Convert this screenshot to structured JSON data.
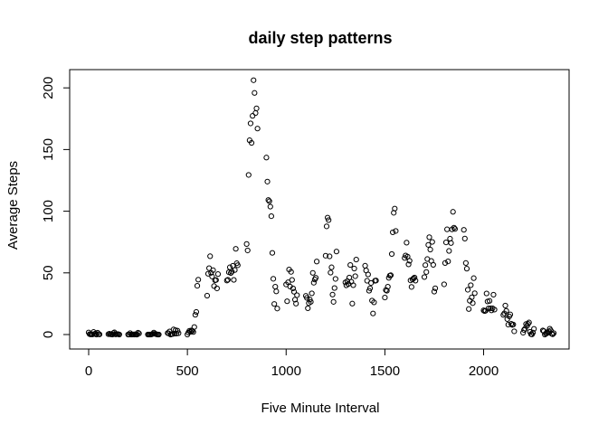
{
  "chart_data": {
    "type": "scatter",
    "title": "daily step patterns",
    "xlabel": "Five Minute Interval",
    "ylabel": "Average Steps",
    "xlim": [
      0,
      2355
    ],
    "ylim": [
      0,
      206
    ],
    "xticks": [
      0,
      500,
      1000,
      1500,
      2000
    ],
    "yticks": [
      0,
      50,
      100,
      150,
      200
    ],
    "grid": false,
    "legend": "none",
    "points": [
      [
        0,
        1.7
      ],
      [
        5,
        0.3
      ],
      [
        10,
        0.1
      ],
      [
        15,
        0.2
      ],
      [
        20,
        0.1
      ],
      [
        25,
        2.1
      ],
      [
        30,
        0.5
      ],
      [
        35,
        0.9
      ],
      [
        40,
        0
      ],
      [
        45,
        1.5
      ],
      [
        50,
        0.3
      ],
      [
        55,
        0.1
      ],
      [
        100,
        0.3
      ],
      [
        105,
        0.7
      ],
      [
        110,
        0.2
      ],
      [
        115,
        0.3
      ],
      [
        120,
        0
      ],
      [
        125,
        1.1
      ],
      [
        130,
        1.8
      ],
      [
        135,
        0.2
      ],
      [
        140,
        0.2
      ],
      [
        145,
        0.4
      ],
      [
        150,
        0.3
      ],
      [
        155,
        0
      ],
      [
        200,
        0
      ],
      [
        205,
        0
      ],
      [
        210,
        1.1
      ],
      [
        215,
        0
      ],
      [
        220,
        0
      ],
      [
        225,
        0.1
      ],
      [
        230,
        0
      ],
      [
        235,
        0.2
      ],
      [
        240,
        0
      ],
      [
        245,
        0
      ],
      [
        250,
        1.5
      ],
      [
        255,
        0.9
      ],
      [
        300,
        0
      ],
      [
        305,
        0
      ],
      [
        310,
        0
      ],
      [
        315,
        0
      ],
      [
        320,
        0.2
      ],
      [
        325,
        0.6
      ],
      [
        330,
        1.6
      ],
      [
        335,
        0.6
      ],
      [
        340,
        0.5
      ],
      [
        345,
        0.1
      ],
      [
        350,
        0
      ],
      [
        355,
        0
      ],
      [
        400,
        1.2
      ],
      [
        405,
        0.9
      ],
      [
        410,
        2.5
      ],
      [
        415,
        0
      ],
      [
        420,
        0.3
      ],
      [
        425,
        0.4
      ],
      [
        430,
        4.1
      ],
      [
        435,
        0.7
      ],
      [
        440,
        3.5
      ],
      [
        445,
        0.8
      ],
      [
        450,
        3.1
      ],
      [
        455,
        1.1
      ],
      [
        500,
        0
      ],
      [
        505,
        1.6
      ],
      [
        510,
        3.0
      ],
      [
        515,
        2.2
      ],
      [
        520,
        3.3
      ],
      [
        525,
        3.0
      ],
      [
        530,
        2.1
      ],
      [
        535,
        6.1
      ],
      [
        540,
        16.0
      ],
      [
        545,
        18.3
      ],
      [
        550,
        39.5
      ],
      [
        555,
        44.5
      ],
      [
        600,
        31.5
      ],
      [
        605,
        49.3
      ],
      [
        610,
        53.8
      ],
      [
        615,
        63.5
      ],
      [
        620,
        50.0
      ],
      [
        625,
        47.1
      ],
      [
        630,
        52.2
      ],
      [
        635,
        39.3
      ],
      [
        640,
        44.0
      ],
      [
        645,
        44.2
      ],
      [
        650,
        37.4
      ],
      [
        655,
        49.0
      ],
      [
        700,
        43.8
      ],
      [
        705,
        44.4
      ],
      [
        710,
        50.5
      ],
      [
        715,
        54.5
      ],
      [
        720,
        49.9
      ],
      [
        725,
        51.0
      ],
      [
        730,
        55.7
      ],
      [
        735,
        44.3
      ],
      [
        740,
        52.3
      ],
      [
        745,
        69.5
      ],
      [
        750,
        57.8
      ],
      [
        755,
        56.2
      ],
      [
        800,
        73.4
      ],
      [
        805,
        68.2
      ],
      [
        810,
        129.4
      ],
      [
        815,
        157.5
      ],
      [
        820,
        171.2
      ],
      [
        825,
        155.4
      ],
      [
        830,
        177.3
      ],
      [
        835,
        206.2
      ],
      [
        840,
        195.9
      ],
      [
        845,
        179.6
      ],
      [
        850,
        183.4
      ],
      [
        855,
        167.0
      ],
      [
        900,
        143.5
      ],
      [
        905,
        124.0
      ],
      [
        910,
        109.1
      ],
      [
        915,
        108.1
      ],
      [
        920,
        103.7
      ],
      [
        925,
        95.97
      ],
      [
        930,
        66.2
      ],
      [
        935,
        45.2
      ],
      [
        940,
        24.8
      ],
      [
        945,
        38.8
      ],
      [
        950,
        34.98
      ],
      [
        955,
        21.1
      ],
      [
        1000,
        40.6
      ],
      [
        1005,
        26.98
      ],
      [
        1010,
        42.4
      ],
      [
        1015,
        52.7
      ],
      [
        1020,
        38.9
      ],
      [
        1025,
        50.8
      ],
      [
        1030,
        44.3
      ],
      [
        1035,
        37.4
      ],
      [
        1040,
        34.7
      ],
      [
        1045,
        28.3
      ],
      [
        1050,
        25.1
      ],
      [
        1055,
        31.9
      ],
      [
        1100,
        31.4
      ],
      [
        1105,
        29.7
      ],
      [
        1110,
        21.3
      ],
      [
        1115,
        25.5
      ],
      [
        1120,
        28.4
      ],
      [
        1125,
        26.5
      ],
      [
        1130,
        33.4
      ],
      [
        1135,
        50.0
      ],
      [
        1140,
        42.0
      ],
      [
        1145,
        44.6
      ],
      [
        1150,
        46.0
      ],
      [
        1155,
        59.2
      ],
      [
        1200,
        63.9
      ],
      [
        1205,
        87.7
      ],
      [
        1210,
        94.8
      ],
      [
        1215,
        92.8
      ],
      [
        1220,
        63.4
      ],
      [
        1225,
        50.2
      ],
      [
        1230,
        54.5
      ],
      [
        1235,
        32.4
      ],
      [
        1240,
        26.5
      ],
      [
        1245,
        37.7
      ],
      [
        1250,
        45.1
      ],
      [
        1255,
        67.3
      ],
      [
        1300,
        42.3
      ],
      [
        1305,
        39.9
      ],
      [
        1310,
        43.3
      ],
      [
        1315,
        41.0
      ],
      [
        1320,
        46.2
      ],
      [
        1325,
        56.4
      ],
      [
        1330,
        42.8
      ],
      [
        1335,
        25.1
      ],
      [
        1340,
        40.0
      ],
      [
        1345,
        53.5
      ],
      [
        1350,
        47.3
      ],
      [
        1355,
        60.8
      ],
      [
        1400,
        55.8
      ],
      [
        1405,
        51.96
      ],
      [
        1410,
        43.6
      ],
      [
        1415,
        48.7
      ],
      [
        1420,
        35.5
      ],
      [
        1425,
        37.5
      ],
      [
        1430,
        41.8
      ],
      [
        1435,
        27.5
      ],
      [
        1440,
        17.1
      ],
      [
        1445,
        26.1
      ],
      [
        1450,
        43.6
      ],
      [
        1455,
        43.8
      ],
      [
        1500,
        30.0
      ],
      [
        1505,
        36.1
      ],
      [
        1510,
        35.5
      ],
      [
        1515,
        38.8
      ],
      [
        1520,
        45.96
      ],
      [
        1525,
        47.8
      ],
      [
        1530,
        48.1
      ],
      [
        1535,
        65.3
      ],
      [
        1540,
        82.9
      ],
      [
        1545,
        98.7
      ],
      [
        1550,
        102.1
      ],
      [
        1555,
        83.96
      ],
      [
        1600,
        62.1
      ],
      [
        1605,
        64.1
      ],
      [
        1610,
        74.5
      ],
      [
        1615,
        63.2
      ],
      [
        1620,
        56.9
      ],
      [
        1625,
        59.8
      ],
      [
        1630,
        43.9
      ],
      [
        1635,
        38.6
      ],
      [
        1640,
        44.7
      ],
      [
        1645,
        45.5
      ],
      [
        1650,
        46.2
      ],
      [
        1655,
        43.7
      ],
      [
        1700,
        46.6
      ],
      [
        1705,
        56.3
      ],
      [
        1710,
        50.7
      ],
      [
        1715,
        61.2
      ],
      [
        1720,
        72.7
      ],
      [
        1725,
        78.9
      ],
      [
        1730,
        68.9
      ],
      [
        1735,
        59.7
      ],
      [
        1740,
        75.1
      ],
      [
        1745,
        56.5
      ],
      [
        1750,
        34.8
      ],
      [
        1755,
        37.5
      ],
      [
        1800,
        40.7
      ],
      [
        1805,
        58.0
      ],
      [
        1810,
        74.7
      ],
      [
        1815,
        85.3
      ],
      [
        1820,
        59.3
      ],
      [
        1825,
        67.8
      ],
      [
        1830,
        77.7
      ],
      [
        1835,
        74.2
      ],
      [
        1840,
        85.3
      ],
      [
        1845,
        99.5
      ],
      [
        1850,
        86.6
      ],
      [
        1855,
        85.6
      ],
      [
        1900,
        84.9
      ],
      [
        1905,
        77.8
      ],
      [
        1910,
        58.0
      ],
      [
        1915,
        53.4
      ],
      [
        1920,
        36.3
      ],
      [
        1925,
        20.7
      ],
      [
        1930,
        27.4
      ],
      [
        1935,
        40.0
      ],
      [
        1940,
        30.2
      ],
      [
        1945,
        25.5
      ],
      [
        1950,
        45.7
      ],
      [
        1955,
        33.5
      ],
      [
        2000,
        19.6
      ],
      [
        2005,
        19.0
      ],
      [
        2010,
        19.3
      ],
      [
        2015,
        33.3
      ],
      [
        2020,
        26.8
      ],
      [
        2025,
        21.2
      ],
      [
        2030,
        27.3
      ],
      [
        2035,
        21.3
      ],
      [
        2040,
        19.6
      ],
      [
        2045,
        21.3
      ],
      [
        2050,
        32.3
      ],
      [
        2055,
        20.2
      ],
      [
        2100,
        15.9
      ],
      [
        2105,
        17.2
      ],
      [
        2110,
        23.5
      ],
      [
        2115,
        19.2
      ],
      [
        2120,
        12.5
      ],
      [
        2125,
        8.0
      ],
      [
        2130,
        14.7
      ],
      [
        2135,
        16.3
      ],
      [
        2140,
        8.7
      ],
      [
        2145,
        7.8
      ],
      [
        2150,
        8.1
      ],
      [
        2155,
        2.6
      ],
      [
        2200,
        1.5
      ],
      [
        2205,
        3.7
      ],
      [
        2210,
        4.8
      ],
      [
        2215,
        8.5
      ],
      [
        2220,
        7.1
      ],
      [
        2225,
        8.7
      ],
      [
        2230,
        9.8
      ],
      [
        2235,
        2.2
      ],
      [
        2240,
        0.3
      ],
      [
        2245,
        0.1
      ],
      [
        2250,
        1.6
      ],
      [
        2255,
        4.6
      ],
      [
        2300,
        3.3
      ],
      [
        2305,
        2.8
      ],
      [
        2310,
        0
      ],
      [
        2315,
        0.8
      ],
      [
        2320,
        1.0
      ],
      [
        2325,
        1.6
      ],
      [
        2330,
        2.6
      ],
      [
        2335,
        4.7
      ],
      [
        2340,
        3.3
      ],
      [
        2345,
        0.6
      ],
      [
        2350,
        0.2
      ],
      [
        2355,
        1.1
      ]
    ]
  }
}
